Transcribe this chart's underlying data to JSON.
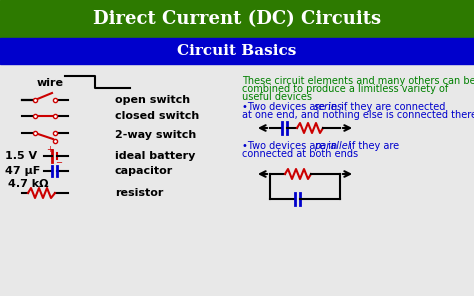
{
  "title1": "Direct Current (DC) Circuits",
  "title2": "Circuit Basics",
  "title1_bg": "#2d7a00",
  "title2_bg": "#0000cc",
  "title_color": "#ffffff",
  "body_bg": "#e8e8e8",
  "green_text_color": "#008000",
  "blue_text_color": "#0000cc",
  "red_color": "#cc0000",
  "black_color": "#000000",
  "left_labels": [
    "wire",
    "open switch",
    "closed switch",
    "2-way switch",
    "ideal battery",
    "capacitor",
    "resistor"
  ],
  "left_label_prefix": [
    "",
    "",
    "",
    "",
    "1.5 V",
    "47 μF",
    "4.7 kΩ"
  ],
  "right_text_line1": "These circuit elements and many others can be",
  "right_text_line2": "combined to produce a limitless variety of",
  "right_text_line3": "useful devices",
  "series_text": "•Two devices are in series if they are connected\nat one end, and nothing else is connected there",
  "parallel_text": "•Two devices are in parallel if they are\nconnected at both ends"
}
